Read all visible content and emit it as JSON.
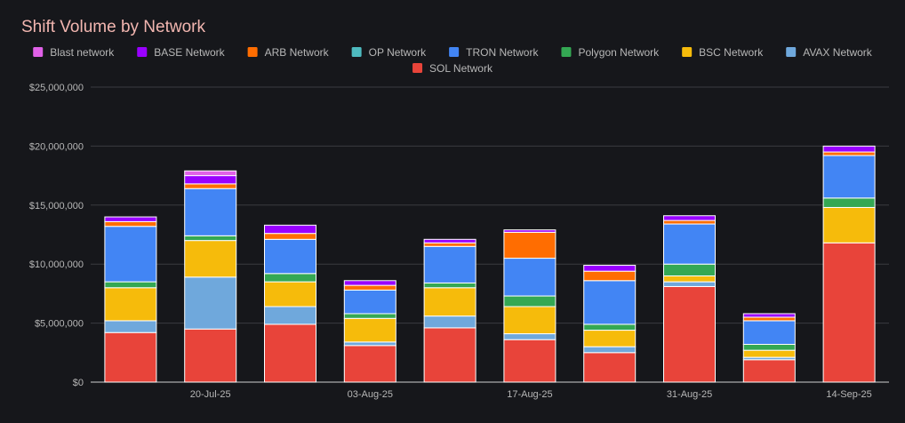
{
  "chart_data": {
    "type": "bar",
    "stacked": true,
    "title": "Shift Volume by Network",
    "xlabel": "",
    "ylabel": "",
    "ylim": [
      0,
      25000000
    ],
    "y_ticks": [
      "$0",
      "$5,000,000",
      "$10,000,000",
      "$15,000,000",
      "$20,000,000",
      "$25,000,000"
    ],
    "y_tick_values": [
      0,
      5000000,
      10000000,
      15000000,
      20000000,
      25000000
    ],
    "x_tick_labels": [
      {
        "index": 1,
        "label": "20-Jul-25"
      },
      {
        "index": 3,
        "label": "03-Aug-25"
      },
      {
        "index": 5,
        "label": "17-Aug-25"
      },
      {
        "index": 7,
        "label": "31-Aug-25"
      },
      {
        "index": 9,
        "label": "14-Sep-25"
      }
    ],
    "grid": true,
    "legend_position": "top",
    "bar_count": 10,
    "series": [
      {
        "name": "SOL Network",
        "color": "#e8443a",
        "values": [
          4200000,
          4500000,
          4900000,
          3100000,
          4600000,
          3600000,
          2500000,
          8100000,
          1900000,
          11800000
        ]
      },
      {
        "name": "AVAX Network",
        "color": "#6fa8dc",
        "values": [
          1000000,
          4400000,
          1500000,
          300000,
          1000000,
          500000,
          500000,
          400000,
          200000,
          0
        ]
      },
      {
        "name": "BSC Network",
        "color": "#f6bb0b",
        "values": [
          2800000,
          3100000,
          2100000,
          2000000,
          2400000,
          2300000,
          1400000,
          500000,
          600000,
          3000000
        ]
      },
      {
        "name": "Polygon Network",
        "color": "#34a853",
        "values": [
          500000,
          400000,
          700000,
          400000,
          400000,
          900000,
          500000,
          1000000,
          500000,
          800000
        ]
      },
      {
        "name": "TRON Network",
        "color": "#4285f4",
        "values": [
          4700000,
          4000000,
          2900000,
          2000000,
          3100000,
          3200000,
          3700000,
          3400000,
          2000000,
          3600000
        ]
      },
      {
        "name": "OP Network",
        "color": "#4ebbc0",
        "values": [
          0,
          0,
          0,
          0,
          0,
          0,
          0,
          0,
          0,
          0
        ]
      },
      {
        "name": "ARB Network",
        "color": "#ff6d01",
        "values": [
          400000,
          400000,
          500000,
          400000,
          300000,
          2200000,
          800000,
          300000,
          300000,
          300000
        ]
      },
      {
        "name": "BASE Network",
        "color": "#9900ff",
        "values": [
          400000,
          700000,
          700000,
          400000,
          300000,
          200000,
          500000,
          400000,
          300000,
          500000
        ]
      },
      {
        "name": "Blast network",
        "color": "#e061e8",
        "values": [
          0,
          400000,
          0,
          0,
          0,
          0,
          0,
          0,
          0,
          0
        ]
      }
    ],
    "legend_order": [
      "Blast network",
      "BASE Network",
      "ARB Network",
      "OP Network",
      "TRON Network",
      "Polygon Network",
      "BSC Network",
      "AVAX Network",
      "SOL Network"
    ]
  }
}
